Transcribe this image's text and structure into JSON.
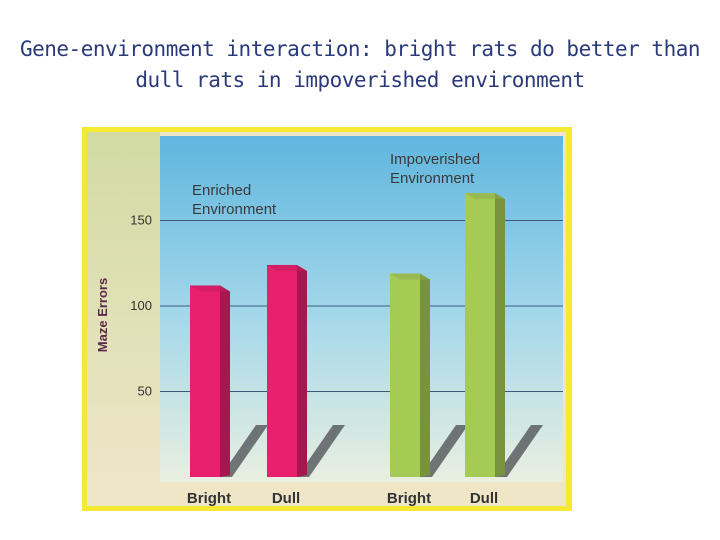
{
  "slide": {
    "title_line1": "Gene-environment interaction: bright rats do better than",
    "title_line2": "dull rats in impoverished environment"
  },
  "chart_data": {
    "type": "bar",
    "title": "",
    "xlabel": "",
    "ylabel": "Maze Errors",
    "ylim": [
      0,
      170
    ],
    "yticks": [
      50,
      100,
      150
    ],
    "grid": true,
    "categories": [
      "Bright",
      "Dull",
      "Bright",
      "Dull"
    ],
    "values": [
      112,
      124,
      119,
      166
    ],
    "groups": [
      {
        "label_line1": "Enriched",
        "label_line2": "Environment",
        "color": "#e8206e",
        "bars": [
          0,
          1
        ]
      },
      {
        "label_line1": "Impoverished",
        "label_line2": "Environment",
        "color": "#a6cb55",
        "bars": [
          2,
          3
        ]
      }
    ],
    "colors": {
      "frame": "#f5e934",
      "plot_background": "#6cbce0",
      "floor": "#efe6c8"
    }
  }
}
